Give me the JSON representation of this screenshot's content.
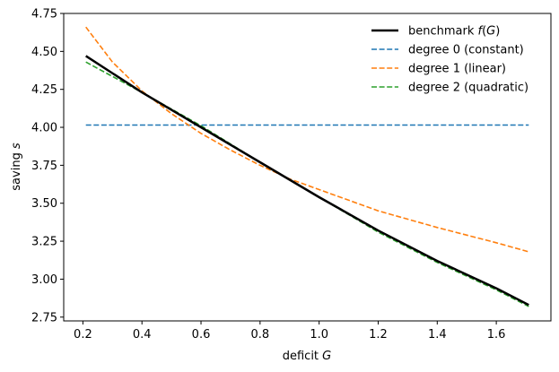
{
  "chart_data": {
    "type": "line",
    "title": "",
    "xlabel": {
      "text": "deficit ",
      "var": "G"
    },
    "ylabel": {
      "text": "saving ",
      "var": "s"
    },
    "xlim": [
      0.135,
      1.785
    ],
    "ylim": [
      2.725,
      4.75
    ],
    "xticks": [
      0.2,
      0.4,
      0.6,
      0.8,
      1.0,
      1.2,
      1.4,
      1.6
    ],
    "xtick_labels": [
      "0.2",
      "0.4",
      "0.6",
      "0.8",
      "1.0",
      "1.2",
      "1.4",
      "1.6"
    ],
    "yticks": [
      2.75,
      3.0,
      3.25,
      3.5,
      3.75,
      4.0,
      4.25,
      4.5,
      4.75
    ],
    "ytick_labels": [
      "2.75",
      "3.00",
      "3.25",
      "3.50",
      "3.75",
      "4.00",
      "4.25",
      "4.50",
      "4.75"
    ],
    "grid": false,
    "legend_position": "top-right",
    "series": [
      {
        "name": "benchmark f(G)",
        "name_parts": {
          "prefix": "benchmark ",
          "italic": "f",
          "paren_open": "(",
          "italic2": "G",
          "paren_close": ")"
        },
        "color": "#000000",
        "style": "solid",
        "x": [
          0.21,
          0.4,
          0.6,
          0.8,
          1.0,
          1.2,
          1.4,
          1.6,
          1.71
        ],
        "y": [
          4.47,
          4.23,
          4.0,
          3.77,
          3.54,
          3.32,
          3.12,
          2.94,
          2.83
        ]
      },
      {
        "name": "degree 0 (constant)",
        "color": "#1f77b4",
        "style": "dashed",
        "x": [
          0.21,
          1.71
        ],
        "y": [
          4.015,
          4.015
        ]
      },
      {
        "name": "degree 1 (linear)",
        "color": "#ff7f0e",
        "style": "dashed",
        "x": [
          0.21,
          0.3,
          0.4,
          0.5,
          0.6,
          0.7,
          0.8,
          0.9,
          1.0,
          1.2,
          1.4,
          1.6,
          1.71
        ],
        "y": [
          4.66,
          4.43,
          4.24,
          4.09,
          3.96,
          3.85,
          3.75,
          3.66,
          3.59,
          3.45,
          3.34,
          3.24,
          3.18
        ]
      },
      {
        "name": "degree 2 (quadratic)",
        "color": "#2ca02c",
        "style": "dashed",
        "x": [
          0.21,
          0.4,
          0.6,
          0.8,
          1.0,
          1.2,
          1.4,
          1.6,
          1.71
        ],
        "y": [
          4.43,
          4.23,
          4.01,
          3.77,
          3.54,
          3.31,
          3.11,
          2.93,
          2.82
        ]
      }
    ]
  }
}
